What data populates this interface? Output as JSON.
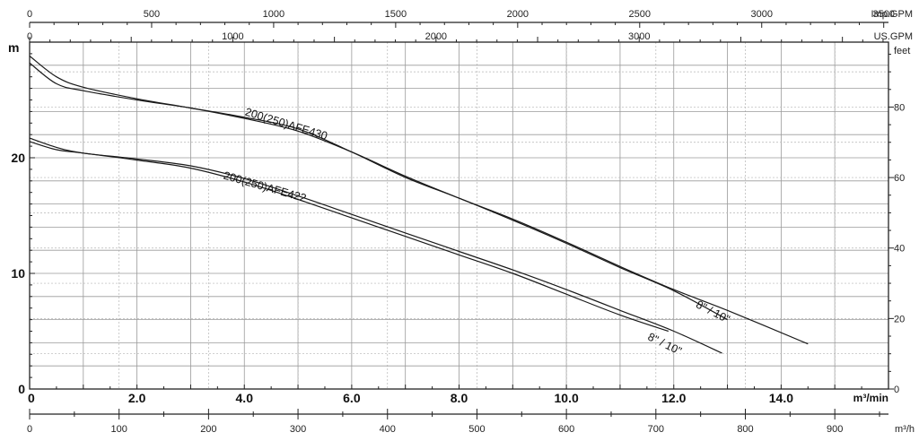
{
  "chart_data": {
    "type": "line",
    "grid": true,
    "axes": {
      "x_main": {
        "unit": "m³/min",
        "range": [
          0,
          16
        ],
        "ticks": [
          "0",
          "2.0",
          "4.0",
          "6.0",
          "8.0",
          "10.0",
          "12.0",
          "14.0"
        ],
        "tick_values": [
          0,
          2,
          4,
          6,
          8,
          10,
          12,
          14
        ]
      },
      "x_top_imp": {
        "unit": "Imp.GPM",
        "range": [
          0,
          3520
        ],
        "ticks": [
          "0",
          "500",
          "1000",
          "1500",
          "2000",
          "2500",
          "3000",
          "3500"
        ],
        "tick_values": [
          0,
          500,
          1000,
          1500,
          2000,
          2500,
          3000,
          3500
        ]
      },
      "x_top_us": {
        "unit": "US.GPM",
        "range": [
          0,
          4227
        ],
        "ticks": [
          "0",
          "1000",
          "2000",
          "3000",
          "US.GPM"
        ],
        "tick_values": [
          0,
          1000,
          2000,
          3000
        ]
      },
      "x_bottom": {
        "unit": "m³/h",
        "range": [
          0,
          960
        ],
        "ticks": [
          "0",
          "100",
          "200",
          "300",
          "400",
          "500",
          "600",
          "700",
          "800",
          "900"
        ],
        "tick_values": [
          0,
          100,
          200,
          300,
          400,
          500,
          600,
          700,
          800,
          900
        ]
      },
      "y_left": {
        "unit": "m",
        "range": [
          0,
          30
        ],
        "ticks": [
          "0",
          "10",
          "20"
        ],
        "tick_values": [
          0,
          10,
          20
        ]
      },
      "y_right": {
        "unit": "feet",
        "range": [
          0,
          98.4
        ],
        "ticks": [
          "0",
          "20",
          "40",
          "60",
          "80"
        ],
        "tick_values": [
          0,
          20,
          40,
          60,
          80
        ]
      }
    },
    "series": [
      {
        "name": "200(250)AFE430",
        "variant": "8\"",
        "x": [
          0,
          0.5,
          1,
          2,
          3,
          4,
          5,
          6,
          7,
          8,
          9,
          10,
          11,
          12,
          13.0
        ],
        "y": [
          28.2,
          26.4,
          25.8,
          25.0,
          24.3,
          23.5,
          22.5,
          20.5,
          18.3,
          16.5,
          14.6,
          12.6,
          10.5,
          8.5,
          6.0
        ]
      },
      {
        "name": "200(250)AFE430",
        "variant": "10\"",
        "x": [
          0,
          0.5,
          1,
          2,
          3,
          4,
          5,
          6,
          7,
          8,
          9,
          10,
          11,
          12,
          13,
          14.5
        ],
        "y": [
          28.8,
          27.0,
          26.1,
          25.1,
          24.3,
          23.4,
          22.3,
          20.5,
          18.4,
          16.5,
          14.7,
          12.7,
          10.6,
          8.6,
          6.8,
          3.9
        ]
      },
      {
        "name": "200(250)AFE422",
        "variant": "8\"",
        "x": [
          0,
          0.5,
          1,
          2,
          3,
          4,
          5,
          6,
          7,
          8,
          9,
          10,
          11,
          11.9
        ],
        "y": [
          21.4,
          20.7,
          20.4,
          19.8,
          19.1,
          17.9,
          16.4,
          14.8,
          13.2,
          11.6,
          10.0,
          8.2,
          6.4,
          5.0
        ]
      },
      {
        "name": "200(250)AFE422",
        "variant": "10\"",
        "x": [
          0,
          0.5,
          1,
          2,
          3,
          4,
          5,
          6,
          7,
          8,
          9,
          10,
          11,
          12,
          12.9
        ],
        "y": [
          21.7,
          20.9,
          20.4,
          19.9,
          19.3,
          18.2,
          16.7,
          15.1,
          13.5,
          11.9,
          10.3,
          8.6,
          6.8,
          5.0,
          3.1
        ]
      }
    ],
    "annotations": [
      {
        "text": "200(250)AFE430",
        "series": "200(250)AFE430",
        "x": 4.0,
        "y": 23.7
      },
      {
        "text": "200(250)AFE422",
        "series": "200(250)AFE422",
        "x": 3.6,
        "y": 18.2
      },
      {
        "text": "8\" / 10\"",
        "series": "200(250)AFE430",
        "x": 12.4,
        "y": 7.1
      },
      {
        "text": "8\" / 10\"",
        "series": "200(250)AFE422",
        "x": 11.5,
        "y": 4.3
      }
    ]
  }
}
